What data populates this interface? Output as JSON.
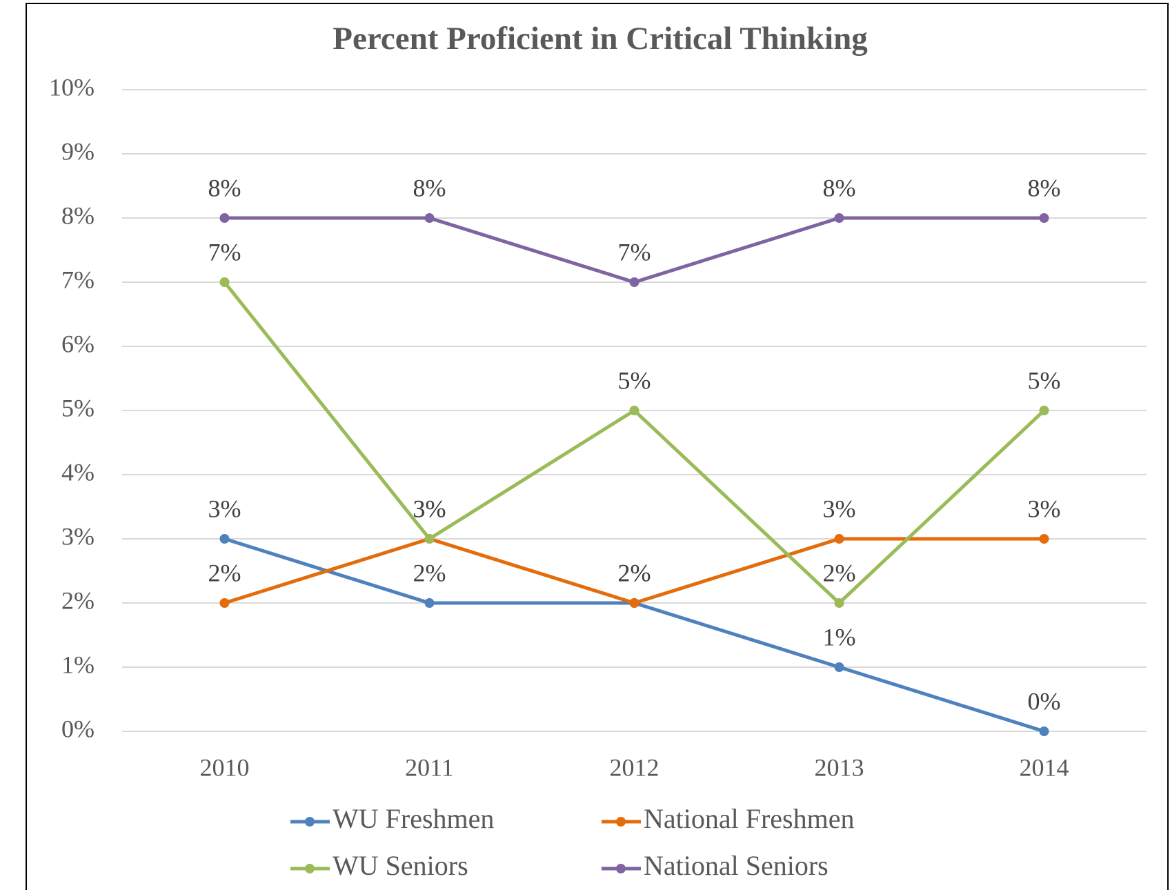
{
  "chart_data": {
    "type": "line",
    "title": "Percent Proficient in Critical Thinking",
    "categories": [
      "2010",
      "2011",
      "2012",
      "2013",
      "2014"
    ],
    "series": [
      {
        "name": "WU Freshmen",
        "color": "#4f81bd",
        "values": [
          3,
          2,
          2,
          1,
          0
        ],
        "value_labels": [
          "3%",
          "2%",
          "2%",
          "1%",
          "0%"
        ]
      },
      {
        "name": "National Freshmen",
        "color": "#e46c0a",
        "values": [
          2,
          3,
          2,
          3,
          3
        ],
        "value_labels": [
          "2%",
          "3%",
          "2%",
          "3%",
          "3%"
        ]
      },
      {
        "name": "WU Seniors",
        "color": "#9bbb59",
        "values": [
          7,
          3,
          5,
          2,
          5
        ],
        "value_labels": [
          "7%",
          "3%",
          "5%",
          "2%",
          "5%"
        ]
      },
      {
        "name": "National Seniors",
        "color": "#8064a2",
        "values": [
          8,
          8,
          7,
          8,
          8
        ],
        "value_labels": [
          "8%",
          "8%",
          "7%",
          "8%",
          "8%"
        ]
      }
    ],
    "ylim": [
      0,
      10
    ],
    "yticks": [
      {
        "value": 0,
        "label": "0%"
      },
      {
        "value": 1,
        "label": "1%"
      },
      {
        "value": 2,
        "label": "2%"
      },
      {
        "value": 3,
        "label": "3%"
      },
      {
        "value": 4,
        "label": "4%"
      },
      {
        "value": 5,
        "label": "5%"
      },
      {
        "value": 6,
        "label": "6%"
      },
      {
        "value": 7,
        "label": "7%"
      },
      {
        "value": 8,
        "label": "8%"
      },
      {
        "value": 9,
        "label": "9%"
      },
      {
        "value": 10,
        "label": "10%"
      }
    ],
    "grid": true,
    "legend": "bottom"
  }
}
